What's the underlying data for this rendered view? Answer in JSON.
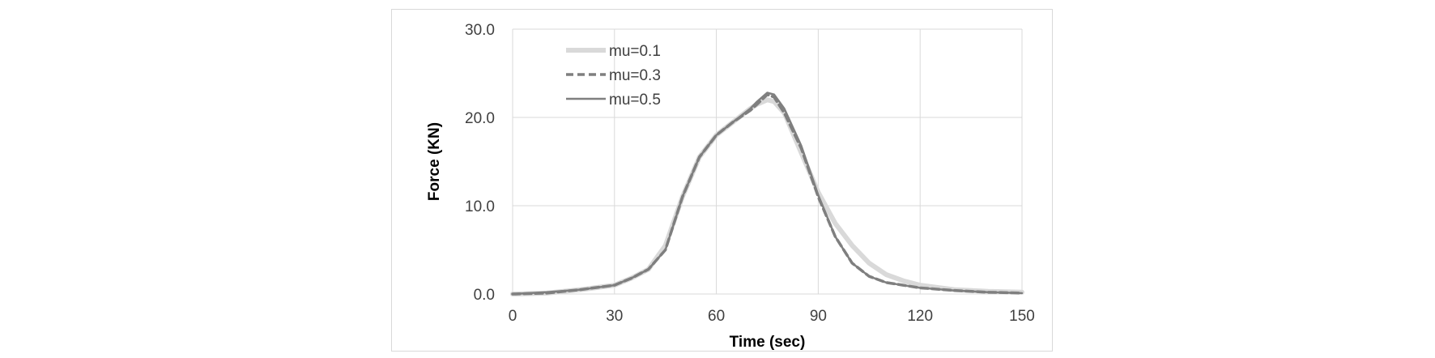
{
  "chart_data": {
    "type": "line",
    "title": "",
    "xlabel": "Time (sec)",
    "ylabel": "Force (KN)",
    "xlim": [
      0,
      150
    ],
    "ylim": [
      0,
      30
    ],
    "x_ticks": [
      "0",
      "30",
      "60",
      "90",
      "120",
      "150"
    ],
    "y_ticks": [
      "0.0",
      "10.0",
      "20.0",
      "30.0"
    ],
    "grid": true,
    "legend_position": "top-left",
    "series": [
      {
        "name": "mu=0.1",
        "color": "#d9d9d9",
        "style": "solid-thick",
        "x": [
          0,
          10,
          20,
          30,
          35,
          40,
          45,
          50,
          55,
          60,
          65,
          70,
          72,
          75,
          77,
          80,
          85,
          90,
          95,
          100,
          105,
          110,
          115,
          120,
          130,
          140,
          150
        ],
        "y": [
          0.0,
          0.1,
          0.5,
          1.0,
          1.8,
          2.8,
          5.5,
          11.0,
          15.5,
          18.0,
          19.5,
          21.0,
          21.5,
          22.0,
          21.8,
          20.5,
          16.0,
          11.5,
          8.0,
          5.5,
          3.5,
          2.2,
          1.5,
          1.0,
          0.5,
          0.3,
          0.2
        ]
      },
      {
        "name": "mu=0.3",
        "color": "#7f7f7f",
        "style": "dashed",
        "x": [
          0,
          10,
          20,
          30,
          35,
          40,
          45,
          50,
          55,
          60,
          65,
          70,
          72,
          75,
          77,
          80,
          85,
          90,
          95,
          100,
          105,
          110,
          115,
          120,
          130,
          140,
          150
        ],
        "y": [
          0.0,
          0.1,
          0.5,
          1.0,
          1.8,
          2.8,
          5.0,
          11.0,
          15.5,
          18.0,
          19.5,
          20.8,
          21.5,
          22.6,
          22.3,
          20.5,
          16.5,
          11.0,
          6.5,
          3.5,
          2.0,
          1.3,
          1.0,
          0.7,
          0.4,
          0.2,
          0.1
        ]
      },
      {
        "name": "mu=0.5",
        "color": "#7f7f7f",
        "style": "solid",
        "x": [
          0,
          10,
          20,
          30,
          35,
          40,
          45,
          50,
          55,
          60,
          65,
          70,
          72,
          75,
          77,
          80,
          85,
          90,
          95,
          100,
          105,
          110,
          115,
          120,
          130,
          140,
          150
        ],
        "y": [
          0.0,
          0.2,
          0.5,
          1.0,
          1.8,
          2.8,
          5.0,
          11.0,
          15.5,
          18.0,
          19.5,
          21.0,
          21.8,
          22.8,
          22.6,
          21.0,
          16.8,
          11.2,
          6.5,
          3.5,
          2.0,
          1.3,
          1.0,
          0.7,
          0.4,
          0.2,
          0.1
        ]
      }
    ]
  }
}
